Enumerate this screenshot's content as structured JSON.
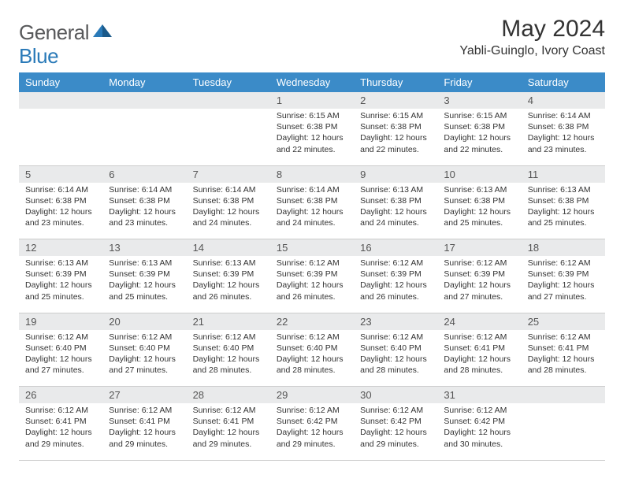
{
  "logo": {
    "text1": "General",
    "text2": "Blue"
  },
  "title": "May 2024",
  "location": "Yabli-Guinglo, Ivory Coast",
  "colors": {
    "header_bg": "#3b8bc8",
    "header_text": "#ffffff",
    "day_num_bg": "#e9eaeb",
    "border": "#cccccc",
    "logo_gray": "#58595b",
    "logo_blue": "#2a7ab8"
  },
  "day_headers": [
    "Sunday",
    "Monday",
    "Tuesday",
    "Wednesday",
    "Thursday",
    "Friday",
    "Saturday"
  ],
  "weeks": [
    {
      "days": [
        {
          "num": "",
          "sunrise": "",
          "sunset": "",
          "daylight": ""
        },
        {
          "num": "",
          "sunrise": "",
          "sunset": "",
          "daylight": ""
        },
        {
          "num": "",
          "sunrise": "",
          "sunset": "",
          "daylight": ""
        },
        {
          "num": "1",
          "sunrise": "Sunrise: 6:15 AM",
          "sunset": "Sunset: 6:38 PM",
          "daylight": "Daylight: 12 hours and 22 minutes."
        },
        {
          "num": "2",
          "sunrise": "Sunrise: 6:15 AM",
          "sunset": "Sunset: 6:38 PM",
          "daylight": "Daylight: 12 hours and 22 minutes."
        },
        {
          "num": "3",
          "sunrise": "Sunrise: 6:15 AM",
          "sunset": "Sunset: 6:38 PM",
          "daylight": "Daylight: 12 hours and 22 minutes."
        },
        {
          "num": "4",
          "sunrise": "Sunrise: 6:14 AM",
          "sunset": "Sunset: 6:38 PM",
          "daylight": "Daylight: 12 hours and 23 minutes."
        }
      ]
    },
    {
      "days": [
        {
          "num": "5",
          "sunrise": "Sunrise: 6:14 AM",
          "sunset": "Sunset: 6:38 PM",
          "daylight": "Daylight: 12 hours and 23 minutes."
        },
        {
          "num": "6",
          "sunrise": "Sunrise: 6:14 AM",
          "sunset": "Sunset: 6:38 PM",
          "daylight": "Daylight: 12 hours and 23 minutes."
        },
        {
          "num": "7",
          "sunrise": "Sunrise: 6:14 AM",
          "sunset": "Sunset: 6:38 PM",
          "daylight": "Daylight: 12 hours and 24 minutes."
        },
        {
          "num": "8",
          "sunrise": "Sunrise: 6:14 AM",
          "sunset": "Sunset: 6:38 PM",
          "daylight": "Daylight: 12 hours and 24 minutes."
        },
        {
          "num": "9",
          "sunrise": "Sunrise: 6:13 AM",
          "sunset": "Sunset: 6:38 PM",
          "daylight": "Daylight: 12 hours and 24 minutes."
        },
        {
          "num": "10",
          "sunrise": "Sunrise: 6:13 AM",
          "sunset": "Sunset: 6:38 PM",
          "daylight": "Daylight: 12 hours and 25 minutes."
        },
        {
          "num": "11",
          "sunrise": "Sunrise: 6:13 AM",
          "sunset": "Sunset: 6:38 PM",
          "daylight": "Daylight: 12 hours and 25 minutes."
        }
      ]
    },
    {
      "days": [
        {
          "num": "12",
          "sunrise": "Sunrise: 6:13 AM",
          "sunset": "Sunset: 6:39 PM",
          "daylight": "Daylight: 12 hours and 25 minutes."
        },
        {
          "num": "13",
          "sunrise": "Sunrise: 6:13 AM",
          "sunset": "Sunset: 6:39 PM",
          "daylight": "Daylight: 12 hours and 25 minutes."
        },
        {
          "num": "14",
          "sunrise": "Sunrise: 6:13 AM",
          "sunset": "Sunset: 6:39 PM",
          "daylight": "Daylight: 12 hours and 26 minutes."
        },
        {
          "num": "15",
          "sunrise": "Sunrise: 6:12 AM",
          "sunset": "Sunset: 6:39 PM",
          "daylight": "Daylight: 12 hours and 26 minutes."
        },
        {
          "num": "16",
          "sunrise": "Sunrise: 6:12 AM",
          "sunset": "Sunset: 6:39 PM",
          "daylight": "Daylight: 12 hours and 26 minutes."
        },
        {
          "num": "17",
          "sunrise": "Sunrise: 6:12 AM",
          "sunset": "Sunset: 6:39 PM",
          "daylight": "Daylight: 12 hours and 27 minutes."
        },
        {
          "num": "18",
          "sunrise": "Sunrise: 6:12 AM",
          "sunset": "Sunset: 6:39 PM",
          "daylight": "Daylight: 12 hours and 27 minutes."
        }
      ]
    },
    {
      "days": [
        {
          "num": "19",
          "sunrise": "Sunrise: 6:12 AM",
          "sunset": "Sunset: 6:40 PM",
          "daylight": "Daylight: 12 hours and 27 minutes."
        },
        {
          "num": "20",
          "sunrise": "Sunrise: 6:12 AM",
          "sunset": "Sunset: 6:40 PM",
          "daylight": "Daylight: 12 hours and 27 minutes."
        },
        {
          "num": "21",
          "sunrise": "Sunrise: 6:12 AM",
          "sunset": "Sunset: 6:40 PM",
          "daylight": "Daylight: 12 hours and 28 minutes."
        },
        {
          "num": "22",
          "sunrise": "Sunrise: 6:12 AM",
          "sunset": "Sunset: 6:40 PM",
          "daylight": "Daylight: 12 hours and 28 minutes."
        },
        {
          "num": "23",
          "sunrise": "Sunrise: 6:12 AM",
          "sunset": "Sunset: 6:40 PM",
          "daylight": "Daylight: 12 hours and 28 minutes."
        },
        {
          "num": "24",
          "sunrise": "Sunrise: 6:12 AM",
          "sunset": "Sunset: 6:41 PM",
          "daylight": "Daylight: 12 hours and 28 minutes."
        },
        {
          "num": "25",
          "sunrise": "Sunrise: 6:12 AM",
          "sunset": "Sunset: 6:41 PM",
          "daylight": "Daylight: 12 hours and 28 minutes."
        }
      ]
    },
    {
      "days": [
        {
          "num": "26",
          "sunrise": "Sunrise: 6:12 AM",
          "sunset": "Sunset: 6:41 PM",
          "daylight": "Daylight: 12 hours and 29 minutes."
        },
        {
          "num": "27",
          "sunrise": "Sunrise: 6:12 AM",
          "sunset": "Sunset: 6:41 PM",
          "daylight": "Daylight: 12 hours and 29 minutes."
        },
        {
          "num": "28",
          "sunrise": "Sunrise: 6:12 AM",
          "sunset": "Sunset: 6:41 PM",
          "daylight": "Daylight: 12 hours and 29 minutes."
        },
        {
          "num": "29",
          "sunrise": "Sunrise: 6:12 AM",
          "sunset": "Sunset: 6:42 PM",
          "daylight": "Daylight: 12 hours and 29 minutes."
        },
        {
          "num": "30",
          "sunrise": "Sunrise: 6:12 AM",
          "sunset": "Sunset: 6:42 PM",
          "daylight": "Daylight: 12 hours and 29 minutes."
        },
        {
          "num": "31",
          "sunrise": "Sunrise: 6:12 AM",
          "sunset": "Sunset: 6:42 PM",
          "daylight": "Daylight: 12 hours and 30 minutes."
        },
        {
          "num": "",
          "sunrise": "",
          "sunset": "",
          "daylight": ""
        }
      ]
    }
  ]
}
